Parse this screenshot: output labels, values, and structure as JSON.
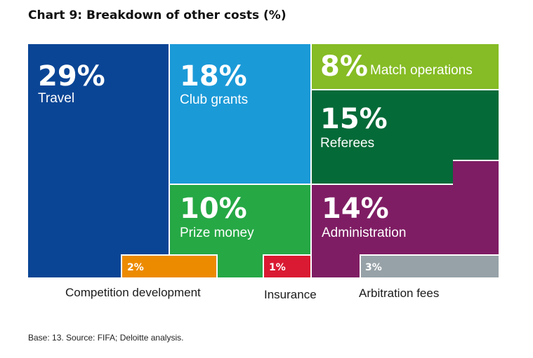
{
  "title": "Chart 9: Breakdown of other costs (%)",
  "chart_data": {
    "type": "treemap",
    "unit": "%",
    "segments": [
      {
        "key": "travel",
        "label": "Travel",
        "value": 29,
        "value_label": "29%",
        "color": "#0a4595"
      },
      {
        "key": "club_grants",
        "label": "Club grants",
        "value": 18,
        "value_label": "18%",
        "color": "#1b9ad8"
      },
      {
        "key": "match_operations",
        "label": "Match operations",
        "value": 8,
        "value_label": "8%",
        "color": "#86bc25"
      },
      {
        "key": "referees",
        "label": "Referees",
        "value": 15,
        "value_label": "15%",
        "color": "#046a38"
      },
      {
        "key": "prize_money",
        "label": "Prize money",
        "value": 10,
        "value_label": "10%",
        "color": "#26a845"
      },
      {
        "key": "administration",
        "label": "Administration",
        "value": 14,
        "value_label": "14%",
        "color": "#7f1d64"
      },
      {
        "key": "competition_development",
        "label": "Competition development",
        "value": 2,
        "value_label": "2%",
        "color": "#ed8b00"
      },
      {
        "key": "insurance",
        "label": "Insurance",
        "value": 1,
        "value_label": "1%",
        "color": "#da1a32"
      },
      {
        "key": "arbitration_fees",
        "label": "Arbitration fees",
        "value": 3,
        "value_label": "3%",
        "color": "#97a2a8"
      }
    ]
  },
  "footnote": "Base: 13. Source: FIFA; Deloitte analysis."
}
